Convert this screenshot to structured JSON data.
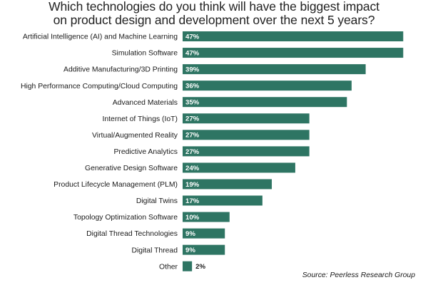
{
  "chart_data": {
    "type": "bar",
    "orientation": "horizontal",
    "title": "Which technologies do you think will have the biggest impact on product design and development over the next 5 years?",
    "categories": [
      "Artificial Intelligence (AI) and Machine Learning",
      "Simulation Software",
      "Additive Manufacturing/3D Printing",
      "High Performance Computing/Cloud Computing",
      "Advanced Materials",
      "Internet of Things (IoT)",
      "Virtual/Augmented Reality",
      "Predictive Analytics",
      "Generative Design Software",
      "Product Lifecycle Management (PLM)",
      "Digital Twins",
      "Topology Optimization Software",
      "Digital Thread  Technologies",
      "Digital Thread",
      "Other"
    ],
    "values": [
      47,
      47,
      39,
      36,
      35,
      27,
      27,
      27,
      24,
      19,
      17,
      10,
      9,
      9,
      2
    ],
    "value_labels": [
      "47%",
      "47%",
      "39%",
      "36%",
      "35%",
      "27%",
      "27%",
      "27%",
      "24%",
      "19%",
      "17%",
      "10%",
      "9%",
      "9%",
      "2%"
    ],
    "source": "Source: Peerless Research Group",
    "bar_color": "#2e7563",
    "grid": false,
    "legend": "none"
  },
  "title_lines": [
    "Which technologies do you think will have the biggest impact",
    "on product design and development over the next 5 years?"
  ]
}
